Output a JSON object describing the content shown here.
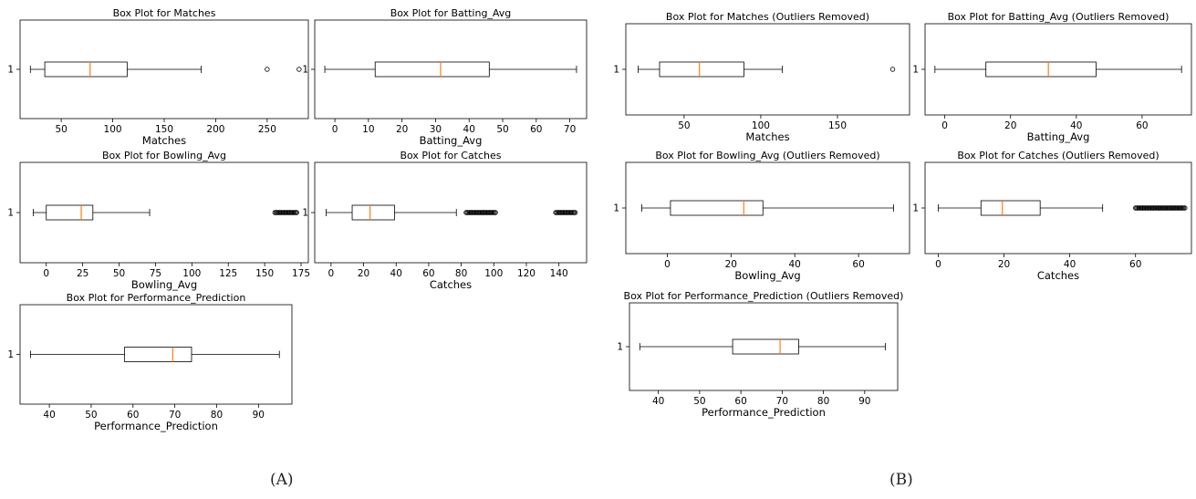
{
  "panel_labels": [
    "(A)",
    "(B)"
  ],
  "colors": {
    "box": "#000000",
    "median": "#ff7f0e",
    "axis": "#000000",
    "outlier_fill": "none"
  },
  "chart_data": [
    {
      "type": "boxplot",
      "panel": "A",
      "title": "Box Plot for Matches",
      "xlabel": "Matches",
      "ylabel": "",
      "category_tick": "1",
      "xlim": [
        10,
        290
      ],
      "xticks": [
        50,
        100,
        150,
        200,
        250
      ],
      "whisker_low": 20,
      "q1": 34,
      "median": 78,
      "q3": 114,
      "whisker_high": 186,
      "outliers": [
        250,
        281
      ]
    },
    {
      "type": "boxplot",
      "panel": "A",
      "title": "Box Plot for Batting_Avg",
      "xlabel": "Batting_Avg",
      "ylabel": "",
      "category_tick": "1",
      "xlim": [
        -6,
        75
      ],
      "xticks": [
        0,
        10,
        20,
        30,
        40,
        50,
        60,
        70
      ],
      "whisker_low": -3,
      "q1": 12,
      "median": 31.5,
      "q3": 46,
      "whisker_high": 72,
      "outliers": []
    },
    {
      "type": "boxplot",
      "panel": "A",
      "title": "Box Plot for Bowling_Avg",
      "xlabel": "Bowling_Avg",
      "ylabel": "",
      "category_tick": "1",
      "xlim": [
        -18,
        180
      ],
      "xticks": [
        0,
        25,
        50,
        75,
        100,
        125,
        150,
        175
      ],
      "whisker_low": -9,
      "q1": 0,
      "median": 24,
      "q3": 32,
      "whisker_high": 71,
      "outliers_range": [
        157,
        172
      ]
    },
    {
      "type": "boxplot",
      "panel": "A",
      "title": "Box Plot for Catches",
      "xlabel": "Catches",
      "ylabel": "",
      "category_tick": "1",
      "xlim": [
        -10,
        157
      ],
      "xticks": [
        0,
        20,
        40,
        60,
        80,
        100,
        120,
        140
      ],
      "whisker_low": -3,
      "q1": 13,
      "median": 24,
      "q3": 39,
      "whisker_high": 77,
      "outliers_range": [
        83,
        101
      ],
      "outliers_range_2": [
        138,
        150
      ]
    },
    {
      "type": "boxplot",
      "panel": "A",
      "title": "Box Plot for Performance_Prediction",
      "xlabel": "Performance_Prediction",
      "ylabel": "",
      "category_tick": "1",
      "xlim": [
        33,
        98
      ],
      "xticks": [
        40,
        50,
        60,
        70,
        80,
        90
      ],
      "whisker_low": 35.5,
      "q1": 58,
      "median": 69.5,
      "q3": 74,
      "whisker_high": 95,
      "outliers": []
    },
    {
      "type": "boxplot",
      "panel": "B",
      "title": "Box Plot for Matches (Outliers Removed)",
      "xlabel": "Matches",
      "ylabel": "",
      "category_tick": "1",
      "xlim": [
        12,
        197
      ],
      "xticks": [
        50,
        100,
        150
      ],
      "whisker_low": 20,
      "q1": 34,
      "median": 60,
      "q3": 89,
      "whisker_high": 114,
      "outliers": [
        186
      ]
    },
    {
      "type": "boxplot",
      "panel": "B",
      "title": "Box Plot for Batting_Avg (Outliers Removed)",
      "xlabel": "Batting_Avg",
      "ylabel": "",
      "category_tick": "1",
      "xlim": [
        -6,
        75
      ],
      "xticks": [
        0,
        20,
        40,
        60
      ],
      "whisker_low": -3,
      "q1": 12.5,
      "median": 31.5,
      "q3": 46,
      "whisker_high": 72,
      "outliers": []
    },
    {
      "type": "boxplot",
      "panel": "B",
      "title": "Box Plot for Bowling_Avg (Outliers Removed)",
      "xlabel": "Bowling_Avg",
      "ylabel": "",
      "category_tick": "1",
      "xlim": [
        -13,
        76
      ],
      "xticks": [
        0,
        20,
        40,
        60
      ],
      "whisker_low": -8,
      "q1": 1,
      "median": 24,
      "q3": 30,
      "whisker_high": 71,
      "outliers": []
    },
    {
      "type": "boxplot",
      "panel": "B",
      "title": "Box Plot for Catches (Outliers Removed)",
      "xlabel": "Catches",
      "ylabel": "",
      "category_tick": "1",
      "xlim": [
        -4,
        77
      ],
      "xticks": [
        0,
        20,
        40,
        60
      ],
      "whisker_low": 0,
      "q1": 13,
      "median": 19.5,
      "q3": 31,
      "whisker_high": 50,
      "outliers_range": [
        60,
        75
      ]
    },
    {
      "type": "boxplot",
      "panel": "B",
      "title": "Box Plot for Performance_Prediction (Outliers Removed)",
      "xlabel": "Performance_Prediction",
      "ylabel": "",
      "category_tick": "1",
      "xlim": [
        33,
        98
      ],
      "xticks": [
        40,
        50,
        60,
        70,
        80,
        90
      ],
      "whisker_low": 35.5,
      "q1": 58,
      "median": 69.5,
      "q3": 74,
      "whisker_high": 95,
      "outliers": []
    }
  ]
}
